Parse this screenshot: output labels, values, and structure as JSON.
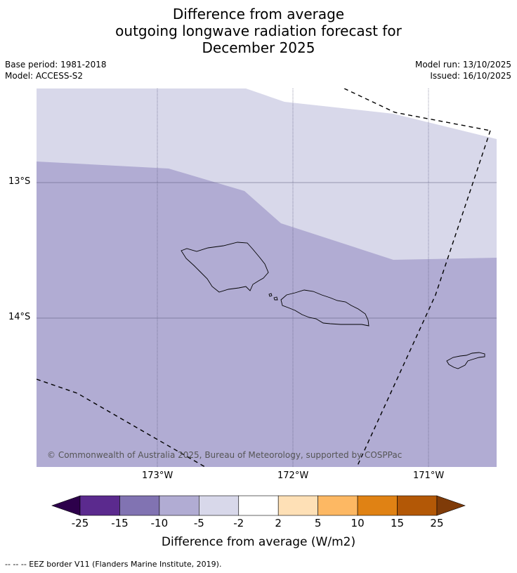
{
  "title": {
    "line1": "Difference from average",
    "line2": "outgoing longwave radiation forecast for",
    "line3": "December 2025"
  },
  "meta": {
    "base_period": "Base period: 1981-2018",
    "model": "Model: ACCESS-S2",
    "model_run": "Model run: 13/10/2025",
    "issued": "Issued: 16/10/2025"
  },
  "map": {
    "lat_labels": [
      "13°S",
      "14°S"
    ],
    "lon_labels": [
      "173°W",
      "172°W",
      "171°W"
    ],
    "copyright": "© Commonwealth of Australia 2025, Bureau of Meteorology, supported by COSPPac",
    "colors": {
      "anomaly_minus10_to_minus5": "#b1acd3",
      "anomaly_minus5_to_minus2": "#d8d8ea",
      "coastline": "#000000",
      "eez": "#000000"
    }
  },
  "colorbar": {
    "ticks": [
      "-25",
      "-15",
      "-10",
      "-5",
      "-2",
      "2",
      "5",
      "10",
      "15",
      "25"
    ],
    "colors": [
      "#5b2a8e",
      "#8173b2",
      "#b1acd3",
      "#d8d8ea",
      "#ffffff",
      "#fee0b6",
      "#fdb863",
      "#e08214",
      "#b35806"
    ],
    "under_color": "#2d004b",
    "over_color": "#7f3b08",
    "title": "Difference from average (W/m2)"
  },
  "legend": {
    "eez": "--  --  -- EEZ border V11 (Flanders Marine Institute, 2019)."
  }
}
